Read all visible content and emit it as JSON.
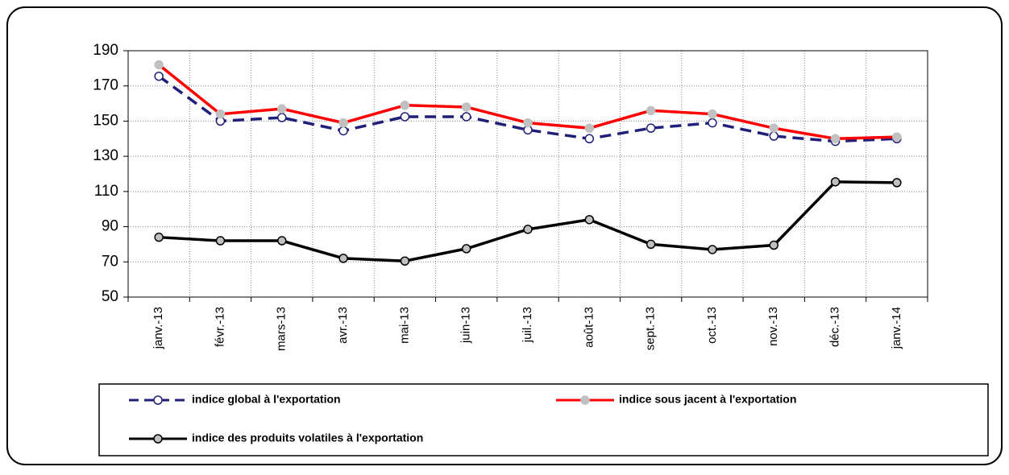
{
  "chart_data": {
    "type": "line",
    "categories": [
      "janv.-13",
      "févr.-13",
      "mars-13",
      "avr.-13",
      "mai-13",
      "juin-13",
      "juil.-13",
      "août-13",
      "sept.-13",
      "oct.-13",
      "nov.-13",
      "déc.-13",
      "janv.-14"
    ],
    "series": [
      {
        "name": "indice global à l'exportation",
        "color": "#1f1f7a",
        "style": "dashed",
        "marker_fill": "#ffffff",
        "values": [
          175.5,
          150,
          152,
          144.5,
          152.5,
          152.5,
          145,
          140,
          146,
          149,
          141.5,
          138.5,
          140
        ]
      },
      {
        "name": "indice sous jacent à l'exportation",
        "color": "#ff0000",
        "style": "solid",
        "marker_fill": "#c0c0c0",
        "values": [
          182,
          154,
          157,
          149,
          159,
          158,
          149,
          146,
          156,
          154,
          146,
          140,
          141
        ]
      },
      {
        "name": "indice des produits volatiles à l'exportation",
        "color": "#000000",
        "style": "solid",
        "marker_fill": "#c0c0c0",
        "values": [
          84,
          82,
          82,
          72,
          70.5,
          77.5,
          88.5,
          94,
          80,
          77,
          79.5,
          115.5,
          115
        ]
      }
    ],
    "ylim": [
      50,
      190
    ],
    "yticks": [
      50,
      70,
      90,
      110,
      130,
      150,
      170,
      190
    ],
    "grid": true
  }
}
